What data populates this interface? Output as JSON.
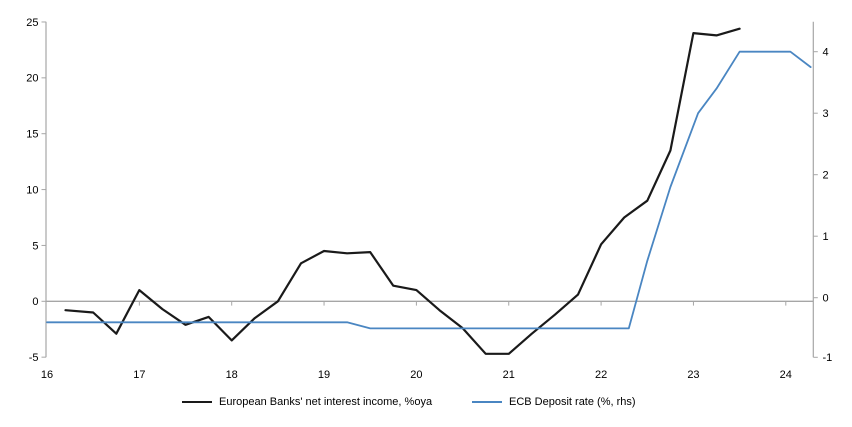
{
  "chart_data": {
    "type": "line",
    "title": "",
    "legend_position": "bottom",
    "grid": "zero-gridline-only",
    "x_axis": {
      "tick_labels": [
        "16",
        "17",
        "18",
        "19",
        "20",
        "21",
        "22",
        "23",
        "24"
      ],
      "tick_values": [
        16,
        17,
        18,
        19,
        20,
        21,
        22,
        23,
        24
      ],
      "range": [
        16,
        24.3
      ]
    },
    "left_axis": {
      "tick_labels": [
        "25",
        "20",
        "15",
        "10",
        "5",
        "0",
        "-5"
      ],
      "tick_values": [
        25,
        20,
        15,
        10,
        5,
        0,
        -5
      ],
      "range": [
        -5,
        25
      ]
    },
    "right_axis": {
      "tick_labels": [
        "4",
        "3",
        "2",
        "1",
        "0",
        "-1"
      ],
      "tick_values": [
        4,
        3,
        2,
        1,
        0,
        -1
      ],
      "range": [
        -1.16,
        4.48
      ]
    },
    "series": [
      {
        "name": "European Banks' net interest income, %oya",
        "axis": "left",
        "color": "#1a1a1a",
        "stroke_width": 2.2,
        "x": [
          16.2,
          16.5,
          16.75,
          17.0,
          17.25,
          17.5,
          17.75,
          18.0,
          18.25,
          18.5,
          18.75,
          19.0,
          19.25,
          19.5,
          19.75,
          20.0,
          20.25,
          20.5,
          20.75,
          21.0,
          21.25,
          21.5,
          21.75,
          22.0,
          22.25,
          22.5,
          22.75,
          23.0,
          23.25,
          23.5
        ],
        "values": [
          -0.8,
          -1.0,
          -2.9,
          1.0,
          -0.7,
          -2.1,
          -1.4,
          -3.5,
          -1.5,
          0.0,
          3.4,
          4.5,
          4.3,
          4.4,
          1.4,
          1.0,
          -0.8,
          -2.4,
          -4.7,
          -4.7,
          -2.9,
          -1.2,
          0.6,
          5.1,
          7.5,
          9.0,
          13.5,
          24.0,
          23.8,
          24.4
        ]
      },
      {
        "name": "ECB Deposit rate (%, rhs)",
        "axis": "right",
        "color": "#4a86c2",
        "stroke_width": 1.8,
        "x": [
          16.0,
          19.25,
          19.5,
          22.3,
          22.5,
          22.75,
          23.05,
          23.25,
          23.5,
          23.75,
          24.05,
          24.27
        ],
        "values": [
          -0.4,
          -0.4,
          -0.5,
          -0.5,
          0.6,
          1.8,
          3.0,
          3.4,
          4.0,
          4.0,
          4.0,
          3.75
        ]
      }
    ],
    "colors": {
      "axis": "#a6a6a6",
      "gridline": "#a6a6a6",
      "tick_text": "#000000",
      "background": "#ffffff"
    }
  }
}
